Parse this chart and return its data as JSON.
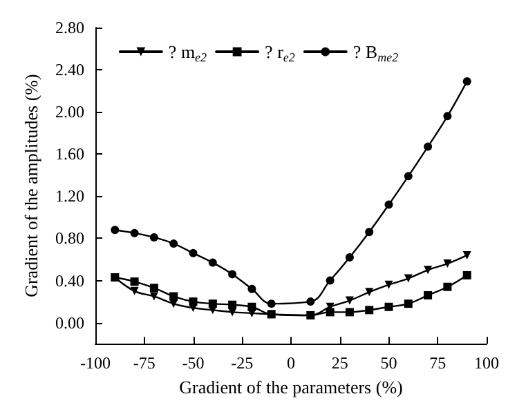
{
  "chart_data": {
    "type": "line",
    "xlabel": "Gradient of the parameters (%)",
    "ylabel": "Gradient of the amplitudes (%)",
    "x": [
      -90,
      -80,
      -70,
      -60,
      -50,
      -40,
      -30,
      -20,
      -10,
      10,
      20,
      30,
      40,
      50,
      60,
      70,
      80,
      90
    ],
    "series": [
      {
        "name": "? m$_{e2}$",
        "color": "#000000",
        "marker": "triangle",
        "values": [
          0.43,
          0.3,
          0.25,
          0.18,
          0.14,
          0.12,
          0.1,
          0.09,
          0.08,
          0.07,
          0.15,
          0.21,
          0.29,
          0.36,
          0.42,
          0.5,
          0.56,
          0.64
        ]
      },
      {
        "name": "? r$_{e2}$",
        "color": "#000000",
        "marker": "square",
        "values": [
          0.43,
          0.39,
          0.33,
          0.25,
          0.2,
          0.18,
          0.17,
          0.15,
          0.08,
          0.07,
          0.1,
          0.1,
          0.12,
          0.15,
          0.18,
          0.26,
          0.34,
          0.45
        ]
      },
      {
        "name": "? B$_{me2}$",
        "color": "#000000",
        "marker": "circle",
        "values": [
          0.88,
          0.85,
          0.81,
          0.75,
          0.66,
          0.57,
          0.46,
          0.32,
          0.18,
          0.2,
          0.4,
          0.62,
          0.86,
          1.12,
          1.39,
          1.67,
          1.96,
          2.29
        ]
      }
    ],
    "xlim": [
      -100,
      100
    ],
    "xticks": [
      -100,
      -75,
      -50,
      -25,
      0,
      25,
      50,
      75,
      100
    ],
    "ylim": [
      -0.2,
      2.8
    ],
    "yticks": [
      {
        "value": 0,
        "label": "0.00"
      },
      {
        "value": 0.4,
        "label": "0.40"
      },
      {
        "value": 0.8,
        "label": "0.80"
      },
      {
        "value": 1.2,
        "label": "1.20"
      },
      {
        "value": 1.6,
        "label": "1.60"
      },
      {
        "value": 2.0,
        "label": "2.00"
      },
      {
        "value": 2.4,
        "label": "2.40"
      },
      {
        "value": 2.8,
        "label": "2.80"
      }
    ],
    "legend": "top",
    "grid": false,
    "line_style": "solid"
  }
}
